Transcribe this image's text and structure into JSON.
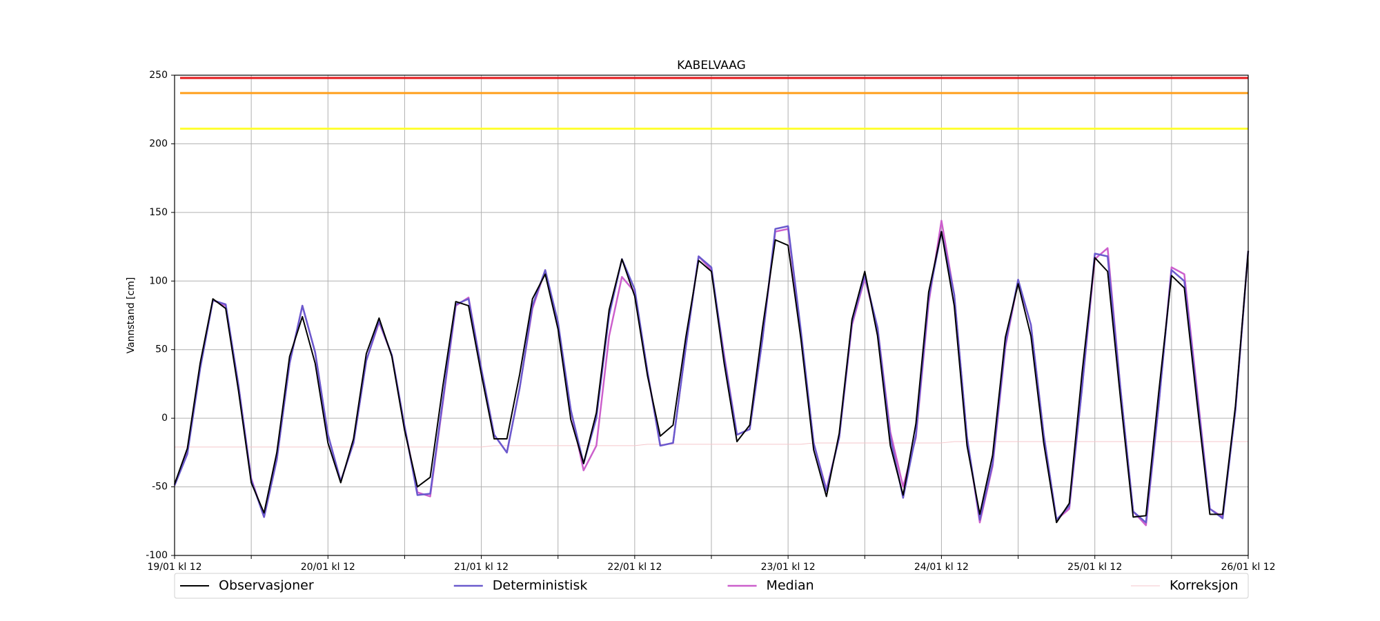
{
  "chart_data": {
    "type": "line",
    "title": "KABELVAAG",
    "y_label": "Vannstand [cm]",
    "x": [
      0,
      2,
      4,
      6,
      8,
      10,
      12,
      14,
      16,
      18,
      20,
      22,
      24,
      26,
      28,
      30,
      32,
      34,
      36,
      38,
      40,
      42,
      44,
      46,
      48,
      50,
      52,
      54,
      56,
      58,
      60,
      62,
      64,
      66,
      68,
      70,
      72,
      74,
      76,
      78,
      80,
      82,
      84,
      86,
      88,
      90,
      92,
      94,
      96,
      98,
      100,
      102,
      104,
      106,
      108,
      110,
      112,
      114,
      116,
      118,
      120,
      122,
      124,
      126,
      128,
      130,
      132,
      134,
      136,
      138,
      140,
      142,
      144,
      146,
      148,
      150,
      152,
      154,
      156,
      158,
      160,
      162,
      164,
      166,
      168
    ],
    "xlim": [
      0,
      168
    ],
    "xticks": [
      {
        "value": 0,
        "label": "19/01 kl 12"
      },
      {
        "value": 24,
        "label": "20/01 kl 12"
      },
      {
        "value": 48,
        "label": "21/01 kl 12"
      },
      {
        "value": 72,
        "label": "22/01 kl 12"
      },
      {
        "value": 96,
        "label": "23/01 kl 12"
      },
      {
        "value": 120,
        "label": "24/01 kl 12"
      },
      {
        "value": 144,
        "label": "25/01 kl 12"
      },
      {
        "value": 168,
        "label": "26/01 kl 12"
      }
    ],
    "xticks_minor": [
      12,
      36,
      60,
      84,
      108,
      132,
      156
    ],
    "ylim": [
      -100,
      250
    ],
    "yticks": [
      -100,
      -50,
      0,
      50,
      100,
      150,
      200,
      250
    ],
    "grid": true,
    "legend": "below",
    "reference_lines": [
      {
        "value": 248,
        "color": "#e41a1c"
      },
      {
        "value": 237,
        "color": "#ff9f1c"
      },
      {
        "value": 211,
        "color": "#ffff33"
      }
    ],
    "series": [
      {
        "name": "Korreksjon",
        "color": "#f5c6cb",
        "line_width": 1,
        "values": [
          -21,
          -21,
          -21,
          -21,
          -21,
          -21,
          -21,
          -21,
          -21,
          -21,
          -21,
          -21,
          -21,
          -21,
          -21,
          -21,
          -21,
          -21,
          -21,
          -21,
          -21,
          -21,
          -21,
          -21,
          -21,
          -20,
          -20,
          -20,
          -20,
          -20,
          -20,
          -20,
          -20,
          -20,
          -20,
          -20,
          -20,
          -19,
          -19,
          -19,
          -19,
          -19,
          -19,
          -19,
          -19,
          -19,
          -19,
          -19,
          -19,
          -19,
          -18,
          -18,
          -18,
          -18,
          -18,
          -18,
          -18,
          -18,
          -18,
          -18,
          -18,
          -17,
          -17,
          -17,
          -17,
          -17,
          -17,
          -17,
          -17,
          -17,
          -17,
          -17,
          -17,
          -17,
          -17,
          -17,
          -17,
          -17,
          -17,
          -17,
          -17,
          -17,
          -17,
          -17,
          -17
        ]
      },
      {
        "name": "Median",
        "color": "#cc5fcc",
        "line_width": 2.5,
        "values": [
          -49,
          -24,
          38,
          86,
          82,
          24,
          -44,
          -72,
          -30,
          40,
          82,
          48,
          -12,
          -46,
          -18,
          42,
          70,
          46,
          -6,
          -54,
          -57,
          12,
          82,
          88,
          36,
          -12,
          -25,
          22,
          80,
          108,
          68,
          6,
          -38,
          -20,
          60,
          103,
          92,
          34,
          -20,
          -18,
          52,
          118,
          108,
          46,
          -12,
          -8,
          58,
          136,
          138,
          62,
          -18,
          -52,
          -14,
          68,
          102,
          66,
          -10,
          -50,
          -14,
          84,
          144,
          90,
          -14,
          -76,
          -35,
          52,
          100,
          68,
          -12,
          -74,
          -66,
          22,
          116,
          124,
          22,
          -68,
          -78,
          10,
          110,
          105,
          20,
          -66,
          -72,
          6,
          122
        ]
      },
      {
        "name": "Deterministisk",
        "color": "#6a5acd",
        "line_width": 2.5,
        "values": [
          -49,
          -26,
          36,
          86,
          83,
          24,
          -45,
          -72,
          -30,
          40,
          82,
          48,
          -12,
          -46,
          -18,
          42,
          71,
          46,
          -6,
          -56,
          -55,
          14,
          83,
          87,
          36,
          -12,
          -25,
          22,
          82,
          108,
          70,
          6,
          -33,
          0,
          75,
          116,
          94,
          34,
          -20,
          -18,
          52,
          118,
          110,
          44,
          -12,
          -8,
          58,
          138,
          140,
          64,
          -18,
          -53,
          -14,
          70,
          104,
          66,
          -14,
          -58,
          -12,
          88,
          136,
          90,
          -14,
          -74,
          -33,
          54,
          101,
          68,
          -12,
          -74,
          -64,
          22,
          120,
          118,
          22,
          -68,
          -76,
          10,
          108,
          100,
          16,
          -66,
          -73,
          6,
          122
        ]
      },
      {
        "name": "Observasjoner",
        "color": "#000000",
        "line_width": 2,
        "values": [
          -48,
          -22,
          40,
          87,
          80,
          20,
          -47,
          -69,
          -25,
          45,
          74,
          40,
          -18,
          -47,
          -15,
          47,
          73,
          45,
          -9,
          -50,
          -43,
          24,
          85,
          82,
          32,
          -15,
          -15,
          32,
          87,
          105,
          65,
          -1,
          -33,
          4,
          79,
          116,
          89,
          31,
          -13,
          -5,
          59,
          115,
          107,
          40,
          -17,
          -5,
          66,
          130,
          126,
          58,
          -23,
          -57,
          -11,
          72,
          107,
          60,
          -20,
          -56,
          -4,
          92,
          136,
          82,
          -20,
          -70,
          -27,
          59,
          98,
          60,
          -18,
          -76,
          -62,
          33,
          117,
          107,
          15,
          -72,
          -71,
          19,
          104,
          95,
          11,
          -70,
          -70,
          9,
          122
        ]
      }
    ]
  }
}
